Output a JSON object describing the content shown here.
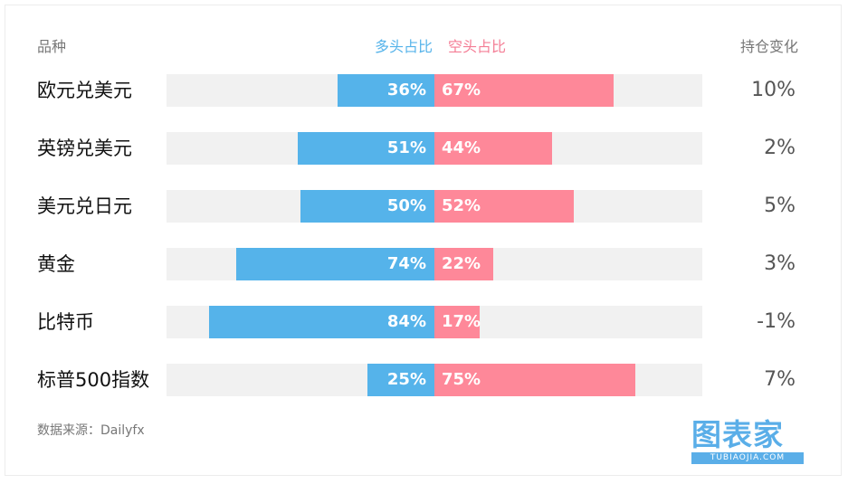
{
  "header": {
    "category_label": "品种",
    "long_label": "多头占比",
    "short_label": "空头占比",
    "change_label": "持仓变化"
  },
  "chart_data": {
    "type": "bar",
    "orientation": "horizontal-diverging",
    "categories": [
      "欧元兑美元",
      "英镑兑美元",
      "美元兑日元",
      "黄金",
      "比特币",
      "标普500指数"
    ],
    "series": [
      {
        "name": "多头占比",
        "values": [
          36,
          51,
          50,
          74,
          84,
          25
        ],
        "labels": [
          "36%",
          "51%",
          "50%",
          "74%",
          "84%",
          "25%"
        ],
        "color": "#55b3ea"
      },
      {
        "name": "空头占比",
        "values": [
          67,
          44,
          52,
          22,
          17,
          75
        ],
        "labels": [
          "67%",
          "44%",
          "52%",
          "22%",
          "17%",
          "75%"
        ],
        "color": "#fe8899"
      }
    ],
    "change": [
      "10%",
      "2%",
      "5%",
      "3%",
      "-1%",
      "7%"
    ],
    "xlim": [
      -100,
      100
    ],
    "grid": false
  },
  "footer": {
    "source": "数据来源：Dailyfx"
  },
  "logo": {
    "text": "图表家",
    "subtext": "TUBIAOJIA.COM",
    "color": "#5aaee8"
  }
}
